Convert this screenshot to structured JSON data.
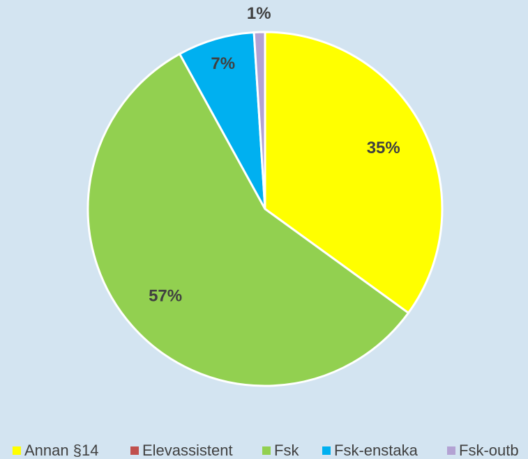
{
  "chart_data": {
    "type": "pie",
    "categories": [
      "Annan §14",
      "Elevassistent",
      "Fsk",
      "Fsk-enstaka",
      "Fsk-outb"
    ],
    "values": [
      35,
      0,
      57,
      7,
      1
    ],
    "value_labels": [
      "35%",
      null,
      "57%",
      "7%",
      "1%"
    ],
    "colors": [
      "#ffff00",
      "#c0504d",
      "#92d050",
      "#00b0f0",
      "#b3a2d3"
    ],
    "legend": "bottom"
  }
}
